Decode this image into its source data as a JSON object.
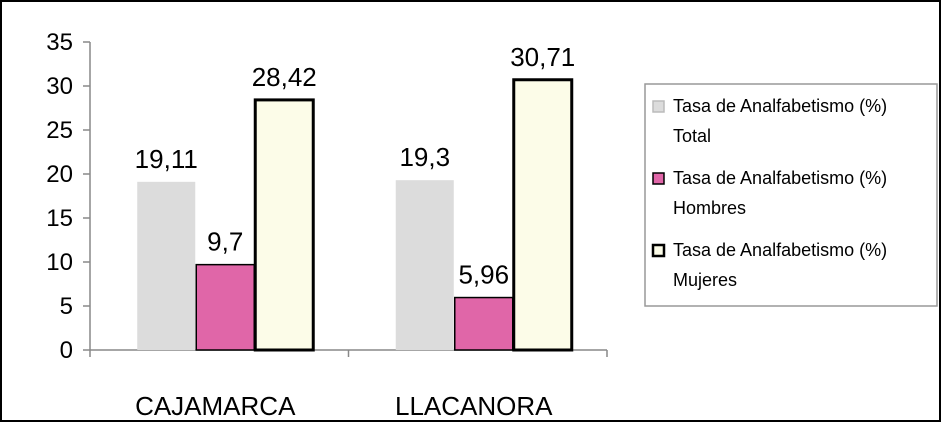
{
  "chart_data": {
    "type": "bar",
    "categories": [
      "CAJAMARCA",
      "LLACANORA"
    ],
    "series": [
      {
        "name": "Tasa de Analfabetismo (%) Total",
        "name_lines": [
          "Tasa de Analfabetismo (%)",
          "Total"
        ],
        "values": [
          19.11,
          19.3
        ],
        "labels": [
          "19,11",
          "19,3"
        ],
        "color": "#dcdcdc"
      },
      {
        "name": "Tasa de Analfabetismo (%) Hombres",
        "name_lines": [
          "Tasa de Analfabetismo (%)",
          "Hombres"
        ],
        "values": [
          9.7,
          5.96
        ],
        "labels": [
          "9,7",
          "5,96"
        ],
        "color": "#e066a8"
      },
      {
        "name": "Tasa de Analfabetismo (%) Mujeres",
        "name_lines": [
          "Tasa de Analfabetismo (%)",
          "Mujeres"
        ],
        "values": [
          28.42,
          30.71
        ],
        "labels": [
          "28,42",
          "30,71"
        ],
        "color": "#fcfce8"
      }
    ],
    "ylim": [
      0,
      35
    ],
    "yticks": [
      0,
      5,
      10,
      15,
      20,
      25,
      30,
      35
    ],
    "grid": false,
    "legend": "right",
    "title": "",
    "xlabel": "",
    "ylabel": ""
  }
}
